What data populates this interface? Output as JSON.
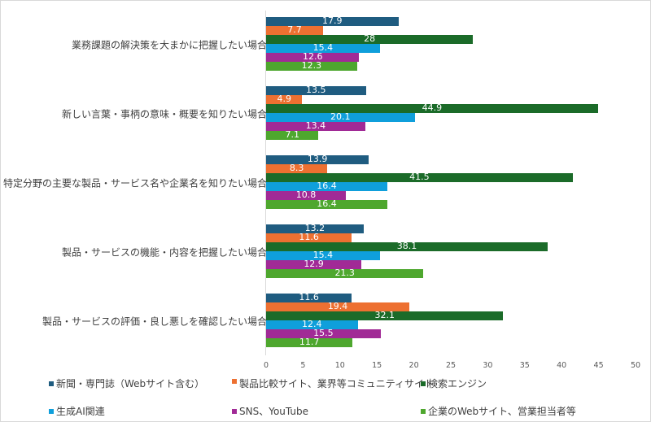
{
  "chart_data": {
    "type": "bar",
    "orientation": "horizontal",
    "title": "",
    "xlabel": "",
    "ylabel": "",
    "xlim": [
      0,
      50
    ],
    "x_ticks": [
      "0",
      "5",
      "10",
      "15",
      "20",
      "25",
      "30",
      "35",
      "40",
      "45",
      "50"
    ],
    "grid": false,
    "legend_position": "bottom",
    "categories": [
      "業務課題の解決策を大まかに把握したい場合",
      "新しい言葉・事柄の意味・概要を知りたい場合",
      "特定分野の主要な製品・サービス名や企業名を知りたい場合",
      "製品・サービスの機能・内容を把握したい場合",
      "製品・サービスの評価・良し悪しを確認したい場合"
    ],
    "series": [
      {
        "name": "新聞・専門誌（Webサイト含む）",
        "color": "#1f5c80",
        "values": [
          17.9,
          13.5,
          13.9,
          13.2,
          11.6
        ]
      },
      {
        "name": "製品比較サイト、業界等コミュニティサイト",
        "color": "#ed7031",
        "values": [
          7.7,
          4.9,
          8.3,
          11.6,
          19.4
        ]
      },
      {
        "name": "検索エンジン",
        "color": "#1b6b29",
        "values": [
          28,
          44.9,
          41.5,
          38.1,
          32.1
        ]
      },
      {
        "name": "生成AI関連",
        "color": "#0f9fdb",
        "values": [
          15.4,
          20.1,
          16.4,
          15.4,
          12.4
        ]
      },
      {
        "name": "SNS、YouTube",
        "color": "#a12a96",
        "values": [
          12.6,
          13.4,
          10.8,
          12.9,
          15.5
        ]
      },
      {
        "name": "企業のWebサイト、営業担当者等",
        "color": "#4ea72e",
        "values": [
          12.3,
          7.1,
          16.4,
          21.3,
          11.7
        ]
      }
    ]
  },
  "value_labels": [
    [
      "17.9",
      "7.7",
      "28",
      "15.4",
      "12.6",
      "12.3"
    ],
    [
      "13.5",
      "4.9",
      "44.9",
      "20.1",
      "13.4",
      "7.1"
    ],
    [
      "13.9",
      "8.3",
      "41.5",
      "16.4",
      "10.8",
      "16.4"
    ],
    [
      "13.2",
      "11.6",
      "38.1",
      "15.4",
      "12.9",
      "21.3"
    ],
    [
      "11.6",
      "19.4",
      "32.1",
      "12.4",
      "15.5",
      "11.7"
    ]
  ]
}
